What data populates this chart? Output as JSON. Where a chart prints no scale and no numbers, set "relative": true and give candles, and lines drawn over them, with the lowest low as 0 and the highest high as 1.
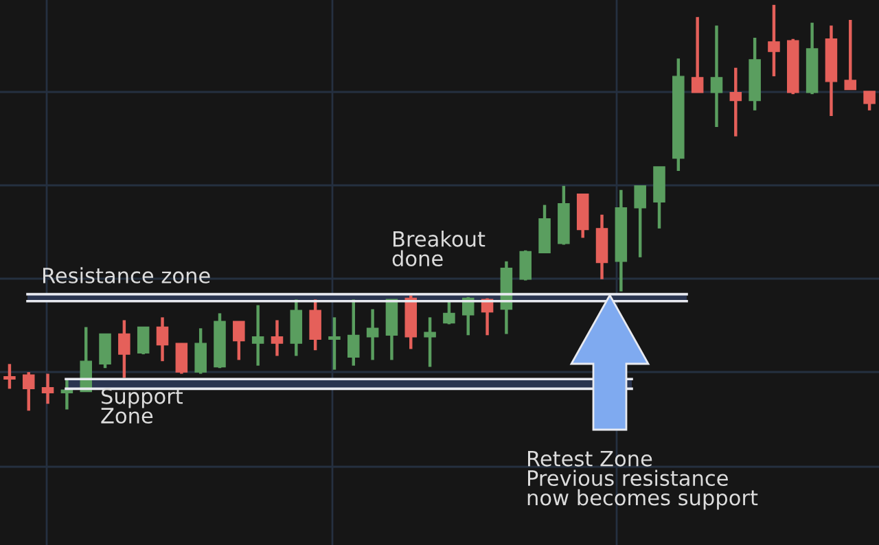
{
  "chart_data": {
    "type": "candlestick",
    "relative": true,
    "grid": true,
    "categories": [
      null,
      null,
      null,
      null,
      null,
      null,
      null,
      null,
      null,
      null,
      null,
      null,
      null,
      null,
      null,
      null,
      null,
      null,
      null,
      null,
      null,
      null,
      null,
      null,
      null,
      null,
      null,
      null,
      null,
      null,
      null,
      null,
      null,
      null,
      null,
      null,
      null,
      null,
      null,
      null,
      null,
      null,
      null,
      null,
      null,
      null
    ],
    "ohlc": [
      [
        0.084,
        0.115,
        0.054,
        0.078
      ],
      [
        0.088,
        0.095,
        0,
        0.054
      ],
      [
        0.057,
        0.091,
        0.017,
        0.044
      ],
      [
        0.044,
        0.078,
        0.003,
        0.051
      ],
      [
        0.047,
        0.206,
        0.047,
        0.122
      ],
      [
        0.115,
        0.189,
        0.105,
        0.189
      ],
      [
        0.189,
        0.223,
        0.081,
        0.139
      ],
      [
        0.142,
        0.206,
        0.139,
        0.206
      ],
      [
        0.206,
        0.23,
        0.122,
        0.162
      ],
      [
        0.166,
        0.166,
        0.091,
        0.095
      ],
      [
        0.095,
        0.203,
        0.091,
        0.166
      ],
      [
        0.108,
        0.24,
        0.105,
        0.22
      ],
      [
        0.22,
        0.22,
        0.125,
        0.172
      ],
      [
        0.166,
        0.26,
        0.111,
        0.182
      ],
      [
        0.182,
        0.223,
        0.135,
        0.166
      ],
      [
        0.166,
        0.274,
        0.135,
        0.247
      ],
      [
        0.247,
        0.274,
        0.149,
        0.176
      ],
      [
        0.176,
        0.23,
        0.101,
        0.182
      ],
      [
        0.132,
        0.274,
        0.111,
        0.186
      ],
      [
        0.182,
        0.25,
        0.125,
        0.203
      ],
      [
        0.186,
        0.274,
        0.125,
        0.274
      ],
      [
        0.277,
        0.284,
        0.152,
        0.182
      ],
      [
        0.182,
        0.23,
        0.108,
        0.193
      ],
      [
        0.216,
        0.27,
        0.213,
        0.24
      ],
      [
        0.236,
        0.28,
        0.186,
        0.277
      ],
      [
        0.274,
        0.277,
        0.186,
        0.243
      ],
      [
        0.25,
        0.368,
        0.189,
        0.351
      ],
      [
        0.324,
        0.395,
        0.321,
        0.392
      ],
      [
        0.389,
        0.507,
        0.389,
        0.473
      ],
      [
        0.412,
        0.554,
        0.409,
        0.51
      ],
      [
        0.534,
        0.534,
        0.426,
        0.446
      ],
      [
        0.449,
        0.483,
        0.324,
        0.365
      ],
      [
        0.368,
        0.544,
        0.294,
        0.5
      ],
      [
        0.5,
        0.554,
        0.378,
        0.554
      ],
      [
        0.514,
        0.601,
        0.449,
        0.601
      ],
      [
        0.622,
        0.868,
        0.591,
        0.824
      ],
      [
        0.821,
        0.97,
        0.784,
        0.784
      ],
      [
        0.784,
        0.949,
        0.699,
        0.821
      ],
      [
        0.784,
        0.845,
        0.676,
        0.764
      ],
      [
        0.764,
        0.919,
        0.74,
        0.865
      ],
      [
        0.909,
        1,
        0.824,
        0.885
      ],
      [
        0.912,
        0.916,
        0.78,
        0.784
      ],
      [
        0.784,
        0.956,
        0.78,
        0.892
      ],
      [
        0.916,
        0.949,
        0.726,
        0.811
      ],
      [
        0.814,
        0.963,
        0.791,
        0.791
      ],
      [
        0.787,
        0.787,
        0.74,
        0.757
      ]
    ],
    "colors": [
      "#e5605a",
      "#e5605a",
      "#e5605a",
      "#5a9e5f",
      "#5a9e5f",
      "#5a9e5f",
      "#e5605a",
      "#5a9e5f",
      "#e5605a",
      "#e5605a",
      "#5a9e5f",
      "#5a9e5f",
      "#e5605a",
      "#5a9e5f",
      "#e5605a",
      "#5a9e5f",
      "#e5605a",
      "#5a9e5f",
      "#5a9e5f",
      "#5a9e5f",
      "#5a9e5f",
      "#e5605a",
      "#5a9e5f",
      "#5a9e5f",
      "#5a9e5f",
      "#e5605a",
      "#5a9e5f",
      "#5a9e5f",
      "#5a9e5f",
      "#5a9e5f",
      "#e5605a",
      "#e5605a",
      "#5a9e5f",
      "#5a9e5f",
      "#5a9e5f",
      "#5a9e5f",
      "#e5605a",
      "#5a9e5f",
      "#e5605a",
      "#5a9e5f",
      "#e5605a",
      "#e5605a",
      "#5a9e5f",
      "#e5605a",
      "#e5605a",
      "#e5605a"
    ],
    "bands": [
      {
        "axis": "y",
        "from": 0.27,
        "to": 0.287,
        "label": "Resistance zone",
        "color": "#2a3550"
      },
      {
        "axis": "y",
        "from": 0.054,
        "to": 0.078,
        "label": "Support\nZone",
        "color": "#2a3550"
      }
    ],
    "ref_lines": [
      {
        "axis": "y",
        "value": 0.27,
        "color": "#e8eaf0"
      },
      {
        "axis": "y",
        "value": 0.287,
        "color": "#e8eaf0"
      },
      {
        "axis": "y",
        "value": 0.054,
        "color": "#e8eaf0"
      },
      {
        "axis": "y",
        "value": 0.078,
        "color": "#e8eaf0"
      }
    ],
    "annotations": [
      "Breakout\ndone",
      "Retest Zone\nPrevious resistance\nnow becomes support"
    ]
  }
}
